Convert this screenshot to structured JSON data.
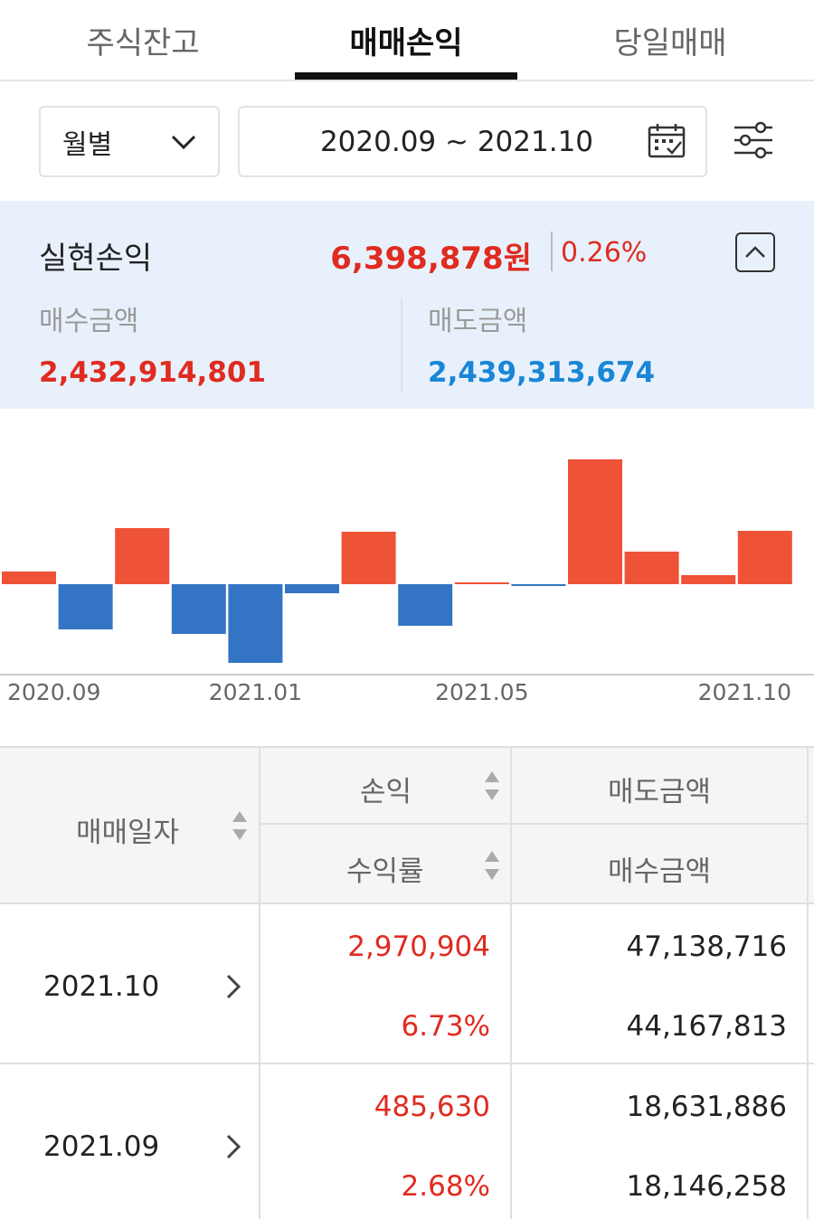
{
  "tabs": [
    {
      "label": "주식잔고",
      "active": false
    },
    {
      "label": "매매손익",
      "active": true
    },
    {
      "label": "당일매매",
      "active": false
    }
  ],
  "filter": {
    "period_select": "월별",
    "date_range": "2020.09 ~ 2021.10"
  },
  "summary": {
    "title": "실현손익",
    "value": "6,398,878원",
    "rate": "0.26%",
    "buy_label": "매수금액",
    "buy_value": "2,432,914,801",
    "sell_label": "매도금액",
    "sell_value": "2,439,313,674"
  },
  "colors": {
    "positive": "#ee5237",
    "negative": "#3474c4",
    "accent_red": "#e02b20",
    "accent_blue": "#1a86d6",
    "summary_bg": "#e8f1fb"
  },
  "chart_data": {
    "type": "bar",
    "categories": [
      "2020.09",
      "2020.10",
      "2020.11",
      "2020.12",
      "2021.01",
      "2021.02",
      "2021.03",
      "2021.04",
      "2021.05",
      "2021.06",
      "2021.07",
      "2021.08",
      "2021.09",
      "2021.10"
    ],
    "tick_labels": [
      "2020.09",
      "2021.01",
      "2021.05",
      "2021.10"
    ],
    "series": [
      {
        "values": [
          14,
          -50,
          62,
          -55,
          -87,
          -10,
          58,
          -46,
          2,
          -2,
          138,
          36,
          10,
          59
        ]
      }
    ],
    "ylim": [
      -100,
      140
    ],
    "grid": false,
    "legend": "none"
  },
  "table": {
    "headers": {
      "date": "매매일자",
      "profit": "손익",
      "rate": "수익률",
      "sell": "매도금액",
      "buy": "매수금액"
    },
    "rows": [
      {
        "date": "2021.10",
        "profit": "2,970,904",
        "rate": "6.73%",
        "sell": "47,138,716",
        "buy": "44,167,813"
      },
      {
        "date": "2021.09",
        "profit": "485,630",
        "rate": "2.68%",
        "sell": "18,631,886",
        "buy": "18,146,258"
      }
    ]
  }
}
